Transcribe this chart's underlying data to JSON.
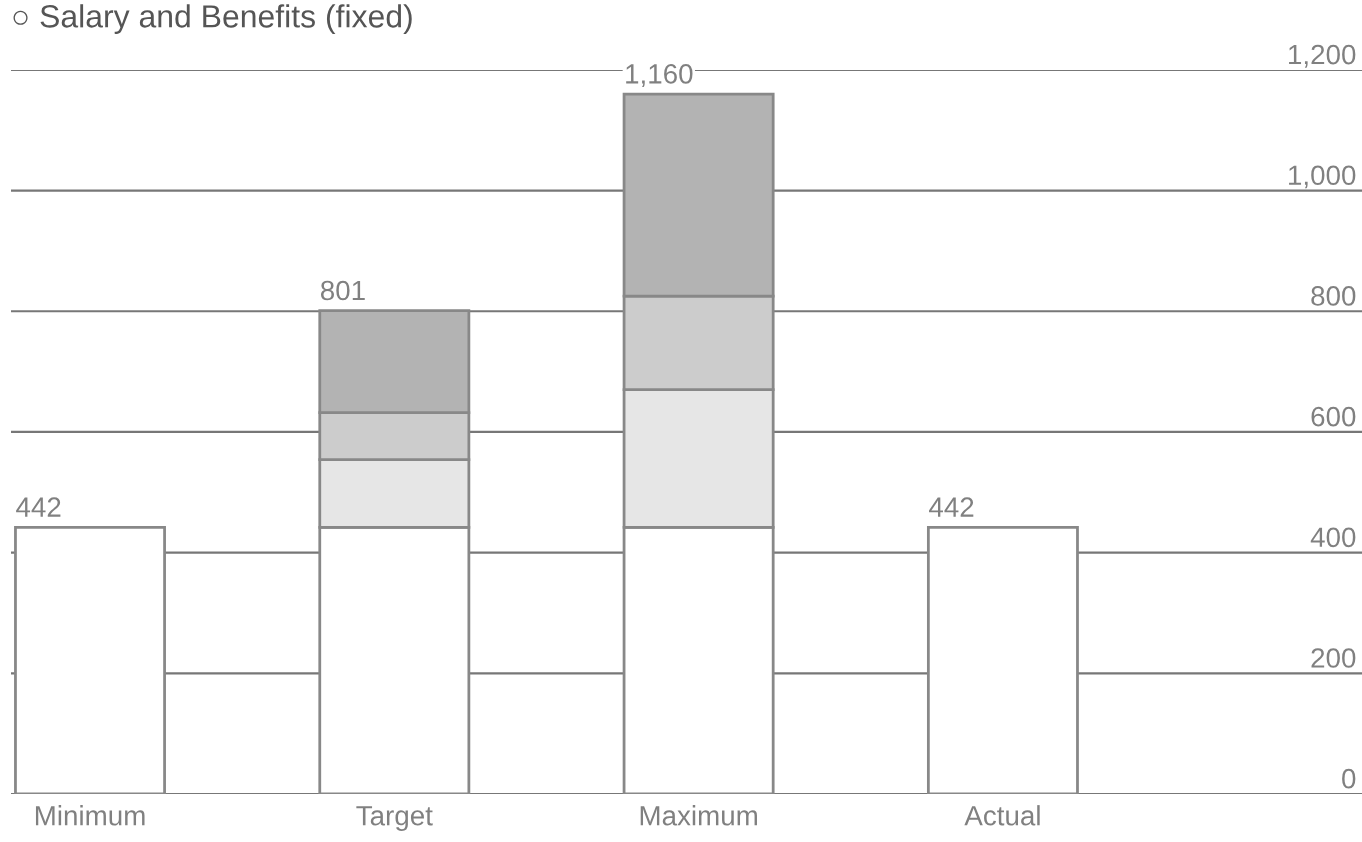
{
  "chart_data": {
    "type": "bar",
    "title": "○ Salary and Benefits (fixed)",
    "stacked": true,
    "categories": [
      "Minimum",
      "Target",
      "Maximum",
      "Actual"
    ],
    "series": [
      {
        "color": "#ffffff",
        "values": [
          442,
          442,
          442,
          442
        ]
      },
      {
        "color": "#e6e6e6",
        "values": [
          null,
          112,
          228,
          null
        ]
      },
      {
        "color": "#cccccc",
        "values": [
          null,
          78,
          155,
          null
        ]
      },
      {
        "color": "#b3b3b3",
        "values": [
          null,
          169,
          335,
          null
        ]
      }
    ],
    "totals": [
      "442",
      "801",
      "1,160",
      "442"
    ],
    "ylim": [
      0,
      1200
    ],
    "yticks": [
      0,
      200,
      400,
      600,
      800,
      {
        "value": 1000,
        "label": "1,000"
      },
      {
        "value": 1200,
        "label": "1,200"
      }
    ],
    "grid": "y",
    "legend": false
  }
}
